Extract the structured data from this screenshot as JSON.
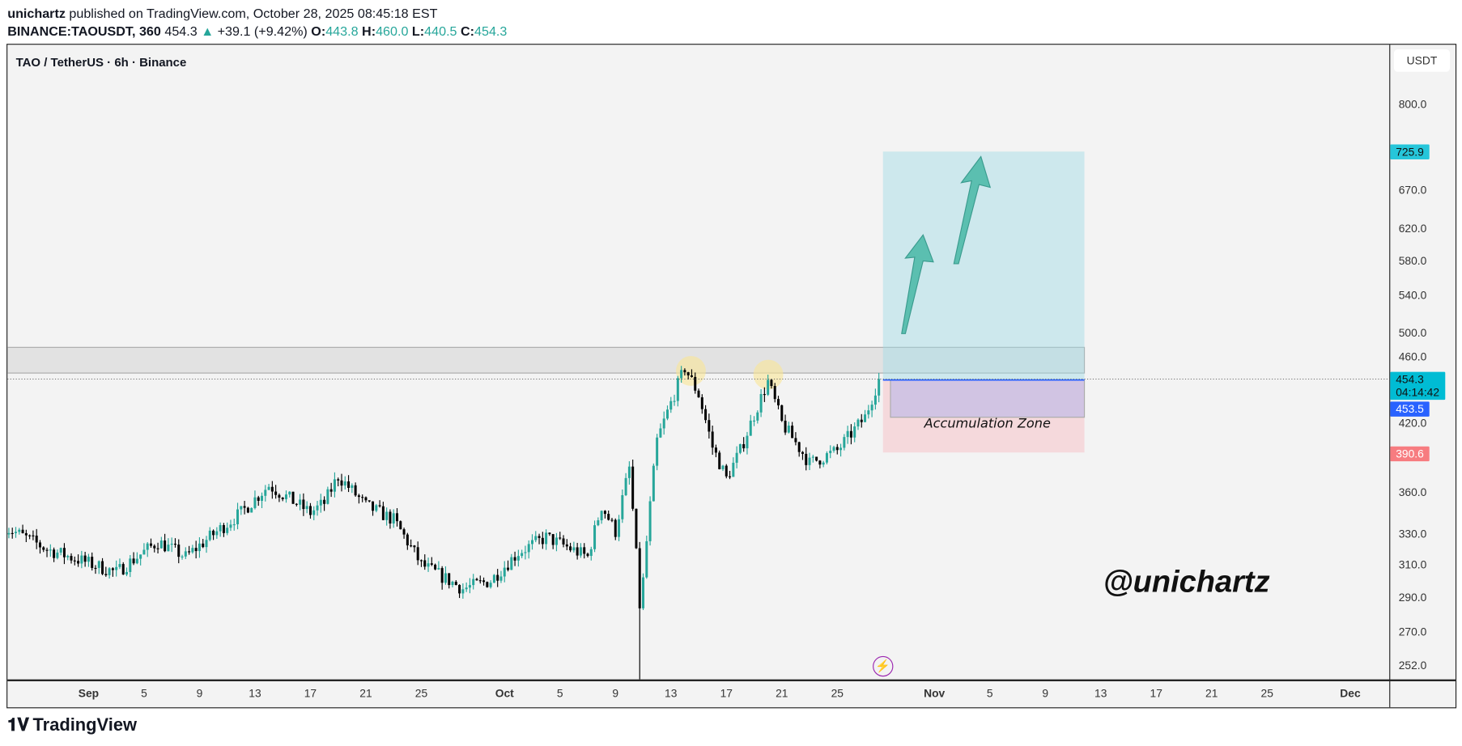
{
  "header": {
    "author": "unichartz",
    "published": "published on TradingView.com, October 28, 2025 08:45:18 EST",
    "symbol": "BINANCE:TAOUSDT, 360",
    "last": "454.3",
    "change": "+39.1 (+9.42%)",
    "o_label": "O:",
    "o": "443.8",
    "h_label": "H:",
    "h": "460.0",
    "l_label": "L:",
    "l": "440.5",
    "c_label": "C:",
    "c": "454.3"
  },
  "chart": {
    "title": "TAO / TetherUS · 6h · Binance",
    "currency": "USDT",
    "price_ticks": [
      "800.0",
      "670.0",
      "620.0",
      "580.0",
      "540.0",
      "500.0",
      "460.0",
      "420.0",
      "360.0",
      "330.0",
      "310.0",
      "290.0",
      "270.0",
      "252.0"
    ],
    "time_ticks": [
      "Sep",
      "5",
      "9",
      "13",
      "17",
      "21",
      "25",
      "Oct",
      "5",
      "9",
      "13",
      "17",
      "21",
      "25",
      "Nov",
      "5",
      "9",
      "13",
      "17",
      "21",
      "25",
      "Dec"
    ],
    "labels": {
      "target": "725.9",
      "last_price": "454.3",
      "countdown": "04:14:42",
      "entry": "453.5",
      "stop": "390.6"
    },
    "zone_label": "Accumulation Zone",
    "watermark": "@unichartz",
    "colors": {
      "up": "#26a69a",
      "down": "#000000",
      "accent": "#00bcd4",
      "target": "#26c6da",
      "entry": "#2962ff",
      "stop": "#f77c80"
    }
  },
  "chart_data": {
    "type": "candlestick",
    "scale": "log",
    "key_closes": [
      [
        "2025-08-26",
        335
      ],
      [
        "2025-08-29",
        320
      ],
      [
        "2025-09-03",
        305
      ],
      [
        "2025-09-06",
        325
      ],
      [
        "2025-09-08",
        315
      ],
      [
        "2025-09-12",
        345
      ],
      [
        "2025-09-14",
        365
      ],
      [
        "2025-09-17",
        345
      ],
      [
        "2025-09-18",
        352
      ],
      [
        "2025-09-19",
        372
      ],
      [
        "2025-09-21",
        350
      ],
      [
        "2025-09-23",
        340
      ],
      [
        "2025-09-25",
        310
      ],
      [
        "2025-09-28",
        295
      ],
      [
        "2025-09-30",
        300
      ],
      [
        "2025-10-02",
        318
      ],
      [
        "2025-10-04",
        328
      ],
      [
        "2025-10-07",
        315
      ],
      [
        "2025-10-08",
        350
      ],
      [
        "2025-10-09",
        332
      ],
      [
        "2025-10-10",
        378
      ],
      [
        "2025-10-10T18",
        285
      ],
      [
        "2025-10-11",
        300
      ],
      [
        "2025-10-12",
        400
      ],
      [
        "2025-10-14",
        465
      ],
      [
        "2025-10-15",
        440
      ],
      [
        "2025-10-16",
        395
      ],
      [
        "2025-10-17",
        370
      ],
      [
        "2025-10-18",
        392
      ],
      [
        "2025-10-20",
        452
      ],
      [
        "2025-10-21",
        415
      ],
      [
        "2025-10-23",
        382
      ],
      [
        "2025-10-25",
        392
      ],
      [
        "2025-10-27",
        420
      ],
      [
        "2025-10-28",
        454.3
      ]
    ],
    "flash_low": 235,
    "resistance_zone": [
      460,
      485
    ],
    "long_position": {
      "entry": 453.5,
      "target": 725.9,
      "stop": 390.6
    }
  },
  "footer": {
    "brand": "TradingView"
  }
}
